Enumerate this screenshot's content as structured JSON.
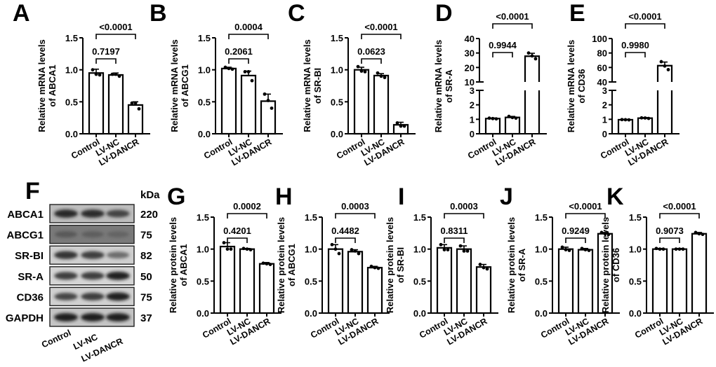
{
  "figure": {
    "groups": [
      "Control",
      "LV-NC",
      "LV-DANCR"
    ]
  },
  "chart_data": [
    {
      "panel": "A",
      "type": "bar",
      "categories": [
        "Control",
        "LV-NC",
        "LV-DANCR"
      ],
      "values": [
        0.95,
        0.92,
        0.45
      ],
      "errors": [
        0.06,
        0.03,
        0.05
      ],
      "points": [
        [
          1.0,
          0.93,
          0.92
        ],
        [
          0.93,
          0.93,
          0.9
        ],
        [
          0.48,
          0.48,
          0.39
        ]
      ],
      "ylabel": [
        "Relative mRNA levels",
        "of ABCA1"
      ],
      "ylim": [
        0,
        1.5
      ],
      "yticks": [
        "0.0",
        "0.5",
        "1.0",
        "1.5"
      ],
      "comparisons": [
        {
          "from": 0,
          "to": 1,
          "label": "0.7197"
        },
        {
          "from": 0,
          "to": 2,
          "label": "<0.0001"
        }
      ]
    },
    {
      "panel": "B",
      "type": "bar",
      "categories": [
        "Control",
        "LV-NC",
        "LV-DANCR"
      ],
      "values": [
        1.02,
        0.91,
        0.51
      ],
      "errors": [
        0.02,
        0.07,
        0.11
      ],
      "points": [
        [
          1.04,
          1.02,
          1.01
        ],
        [
          0.97,
          0.97,
          0.83
        ],
        [
          0.62,
          0.52,
          0.4
        ]
      ],
      "ylabel": [
        "Relative mRNA levels",
        "of ABCG1"
      ],
      "ylim": [
        0,
        1.5
      ],
      "yticks": [
        "0.0",
        "0.5",
        "1.0",
        "1.5"
      ],
      "comparisons": [
        {
          "from": 0,
          "to": 1,
          "label": "0.2061"
        },
        {
          "from": 0,
          "to": 2,
          "label": "0.0004"
        }
      ]
    },
    {
      "panel": "C",
      "type": "bar",
      "categories": [
        "Control",
        "LV-NC",
        "LV-DANCR"
      ],
      "values": [
        1.0,
        0.91,
        0.14
      ],
      "errors": [
        0.04,
        0.03,
        0.04
      ],
      "points": [
        [
          1.05,
          0.98,
          0.97
        ],
        [
          0.95,
          0.9,
          0.88
        ],
        [
          0.17,
          0.12,
          0.12
        ]
      ],
      "ylabel": [
        "Relative mRNA levels",
        "of SR-BI"
      ],
      "ylim": [
        0,
        1.5
      ],
      "yticks": [
        "0.0",
        "0.5",
        "1.0",
        "1.5"
      ],
      "comparisons": [
        {
          "from": 0,
          "to": 1,
          "label": "0.0623"
        },
        {
          "from": 0,
          "to": 2,
          "label": "<0.0001"
        }
      ]
    },
    {
      "panel": "D",
      "type": "bar",
      "broken_axis": true,
      "categories": [
        "Control",
        "LV-NC",
        "LV-DANCR"
      ],
      "values": [
        1.05,
        1.13,
        27.8
      ],
      "errors": [
        0.04,
        0.07,
        2.0
      ],
      "points": [
        [
          1.08,
          1.05,
          1.03
        ],
        [
          1.2,
          1.12,
          1.08
        ],
        [
          30.0,
          28.0,
          26.0
        ]
      ],
      "ylabel": [
        "Relative mRNA levels",
        "of SR-A"
      ],
      "ylim_lower": [
        0,
        3
      ],
      "ylim_upper": [
        10,
        40
      ],
      "yticks_lower": [
        "0",
        "1",
        "2",
        "3"
      ],
      "yticks_upper": [
        "10",
        "20",
        "30",
        "40"
      ],
      "comparisons": [
        {
          "from": 0,
          "to": 1,
          "label": "0.9944"
        },
        {
          "from": 0,
          "to": 2,
          "label": "<0.0001"
        }
      ]
    },
    {
      "panel": "E",
      "type": "bar",
      "broken_axis": true,
      "categories": [
        "Control",
        "LV-NC",
        "LV-DANCR"
      ],
      "values": [
        0.97,
        1.08,
        62.5
      ],
      "errors": [
        0.03,
        0.04,
        5.0
      ],
      "points": [
        [
          0.98,
          0.97,
          0.96
        ],
        [
          1.1,
          1.09,
          1.06
        ],
        [
          68.0,
          62.0,
          57.0
        ]
      ],
      "ylabel": [
        "Relative mRNA levels",
        "of CD36"
      ],
      "ylim_lower": [
        0,
        3
      ],
      "ylim_upper": [
        40,
        100
      ],
      "yticks_lower": [
        "0",
        "1",
        "2",
        "3"
      ],
      "yticks_upper": [
        "40",
        "60",
        "80",
        "100"
      ],
      "comparisons": [
        {
          "from": 0,
          "to": 1,
          "label": "0.9980"
        },
        {
          "from": 0,
          "to": 2,
          "label": "<0.0001"
        }
      ]
    },
    {
      "panel": "G",
      "type": "bar",
      "categories": [
        "Control",
        "LV-NC",
        "LV-DANCR"
      ],
      "values": [
        1.04,
        1.0,
        0.77
      ],
      "errors": [
        0.06,
        0.01,
        0.02
      ],
      "points": [
        [
          1.1,
          1.0,
          1.0
        ],
        [
          1.01,
          1.0,
          0.99
        ],
        [
          0.78,
          0.77,
          0.76
        ]
      ],
      "ylabel": [
        "Relative protein levels",
        "of ABCA1"
      ],
      "ylim": [
        0,
        1.5
      ],
      "yticks": [
        "0.0",
        "0.5",
        "1.0",
        "1.5"
      ],
      "comparisons": [
        {
          "from": 0,
          "to": 1,
          "label": "0.4201"
        },
        {
          "from": 0,
          "to": 2,
          "label": "0.0002"
        }
      ]
    },
    {
      "panel": "H",
      "type": "bar",
      "categories": [
        "Control",
        "LV-NC",
        "LV-DANCR"
      ],
      "values": [
        1.0,
        0.96,
        0.71
      ],
      "errors": [
        0.07,
        0.03,
        0.02
      ],
      "points": [
        [
          1.07,
          1.0,
          0.93
        ],
        [
          0.99,
          0.97,
          0.93
        ],
        [
          0.73,
          0.71,
          0.7
        ]
      ],
      "ylabel": [
        "Relative protein levels",
        "of ABCG1"
      ],
      "ylim": [
        0,
        1.5
      ],
      "yticks": [
        "0.0",
        "0.5",
        "1.0",
        "1.5"
      ],
      "comparisons": [
        {
          "from": 0,
          "to": 1,
          "label": "0.4482"
        },
        {
          "from": 0,
          "to": 2,
          "label": "0.0003"
        }
      ]
    },
    {
      "panel": "I",
      "type": "bar",
      "categories": [
        "Control",
        "LV-NC",
        "LV-DANCR"
      ],
      "values": [
        1.02,
        1.0,
        0.72
      ],
      "errors": [
        0.05,
        0.05,
        0.04
      ],
      "points": [
        [
          1.07,
          0.99,
          0.99
        ],
        [
          1.05,
          0.97,
          0.97
        ],
        [
          0.76,
          0.71,
          0.69
        ]
      ],
      "ylabel": [
        "Relative protein levels",
        "of SR-BI"
      ],
      "ylim": [
        0,
        1.5
      ],
      "yticks": [
        "0.0",
        "0.5",
        "1.0",
        "1.5"
      ],
      "comparisons": [
        {
          "from": 0,
          "to": 1,
          "label": "0.8311"
        },
        {
          "from": 0,
          "to": 2,
          "label": "0.0003"
        }
      ]
    },
    {
      "panel": "J",
      "type": "bar",
      "categories": [
        "Control",
        "LV-NC",
        "LV-DANCR"
      ],
      "values": [
        1.0,
        0.99,
        1.24
      ],
      "errors": [
        0.03,
        0.02,
        0.02
      ],
      "points": [
        [
          1.03,
          0.99,
          0.98
        ],
        [
          1.01,
          0.99,
          0.98
        ],
        [
          1.26,
          1.24,
          1.23
        ]
      ],
      "ylabel": [
        "Relative protein levels",
        "of SR-A"
      ],
      "ylim": [
        0,
        1.5
      ],
      "yticks": [
        "0.0",
        "0.5",
        "1.0",
        "1.5"
      ],
      "comparisons": [
        {
          "from": 0,
          "to": 1,
          "label": "0.9249"
        },
        {
          "from": 0,
          "to": 2,
          "label": "<0.0001"
        }
      ]
    },
    {
      "panel": "K",
      "type": "bar",
      "categories": [
        "Control",
        "LV-NC",
        "LV-DANCR"
      ],
      "values": [
        1.0,
        1.0,
        1.24
      ],
      "errors": [
        0.01,
        0.01,
        0.02
      ],
      "points": [
        [
          1.01,
          1.0,
          1.0
        ],
        [
          1.0,
          1.0,
          1.0
        ],
        [
          1.26,
          1.24,
          1.23
        ]
      ],
      "ylabel": [
        "Relative protein levels",
        "of CD36"
      ],
      "ylim": [
        0,
        1.5
      ],
      "yticks": [
        "0.0",
        "0.5",
        "1.0",
        "1.5"
      ],
      "comparisons": [
        {
          "from": 0,
          "to": 1,
          "label": "0.9073"
        },
        {
          "from": 0,
          "to": 2,
          "label": "<0.0001"
        }
      ]
    }
  ],
  "western_blot": {
    "panel": "F",
    "kda_header": "kDa",
    "lanes": [
      "Control",
      "LV-NC",
      "LV-DANCR"
    ],
    "rows": [
      {
        "protein": "ABCA1",
        "kda": "220",
        "intensity": [
          0.95,
          0.92,
          0.8
        ],
        "background": "#bdbdbd"
      },
      {
        "protein": "ABCG1",
        "kda": "75",
        "intensity": [
          0.55,
          0.5,
          0.45
        ],
        "background": "#7a7a7a"
      },
      {
        "protein": "SR-BI",
        "kda": "82",
        "intensity": [
          0.9,
          0.85,
          0.6
        ],
        "background": "#cfcfcf"
      },
      {
        "protein": "SR-A",
        "kda": "50",
        "intensity": [
          0.85,
          0.85,
          0.98
        ],
        "background": "#d5d5d5"
      },
      {
        "protein": "CD36",
        "kda": "75",
        "intensity": [
          0.8,
          0.85,
          0.98
        ],
        "background": "#d0d0d0"
      },
      {
        "protein": "GAPDH",
        "kda": "37",
        "intensity": [
          1.0,
          1.0,
          1.0
        ],
        "background": "#c4c4c4"
      }
    ]
  }
}
